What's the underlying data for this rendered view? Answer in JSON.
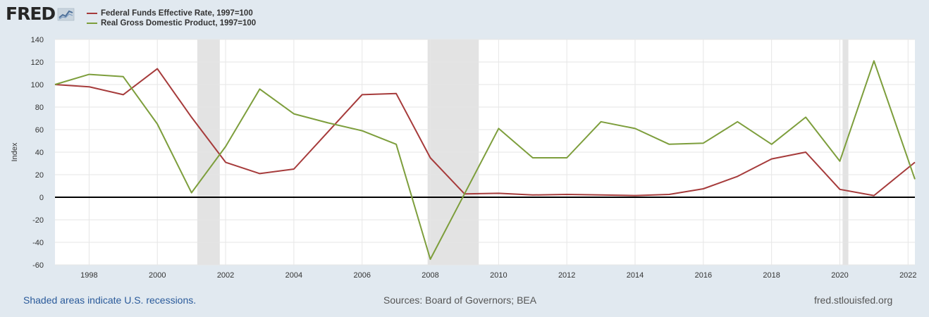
{
  "logo": {
    "text": "FRED"
  },
  "legend": [
    {
      "label": "Federal Funds Effective Rate, 1997=100",
      "color": "#a63b3b"
    },
    {
      "label": "Real Gross Domestic Product, 1997=100",
      "color": "#7d9e3c"
    }
  ],
  "footer": {
    "note": "Shaded areas indicate U.S. recessions.",
    "sources": "Sources: Board of Governors; BEA",
    "url": "fred.stlouisfed.org"
  },
  "chart_data": {
    "type": "line",
    "ylabel": "Index",
    "xlabel": "",
    "title": "",
    "ylim": [
      -60,
      140
    ],
    "yticks": [
      -60,
      -40,
      -20,
      0,
      20,
      40,
      60,
      80,
      100,
      120,
      140
    ],
    "xlim": [
      1997,
      2022.2
    ],
    "xticks": [
      1998,
      2000,
      2002,
      2004,
      2006,
      2008,
      2010,
      2012,
      2014,
      2016,
      2018,
      2020,
      2022
    ],
    "grid": true,
    "legend_position": "top-left",
    "recessions": [
      [
        2001.17,
        2001.83
      ],
      [
        2007.92,
        2009.42
      ],
      [
        2020.08,
        2020.25
      ]
    ],
    "zero_line": true,
    "x": [
      1997,
      1998,
      1999,
      2000,
      2001,
      2002,
      2003,
      2004,
      2005,
      2006,
      2007,
      2008,
      2009,
      2010,
      2011,
      2012,
      2013,
      2014,
      2015,
      2016,
      2017,
      2018,
      2019,
      2020,
      2021,
      2022.2
    ],
    "series": [
      {
        "name": "Federal Funds Effective Rate, 1997=100",
        "color": "#a63b3b",
        "values": [
          100,
          98,
          91,
          114,
          71,
          31,
          21,
          25,
          58,
          91,
          92,
          35,
          3,
          3.5,
          2,
          2.5,
          2,
          1.5,
          2.5,
          7.5,
          18.5,
          34,
          40,
          7,
          1.5,
          31
        ]
      },
      {
        "name": "Real Gross Domestic Product, 1997=100",
        "color": "#7d9e3c",
        "values": [
          100,
          109,
          107,
          65,
          4,
          45,
          96,
          74,
          66,
          59,
          47,
          -55,
          3,
          61,
          35,
          35,
          67,
          61,
          47,
          48,
          67,
          47,
          71,
          32,
          121,
          16
        ]
      }
    ]
  }
}
